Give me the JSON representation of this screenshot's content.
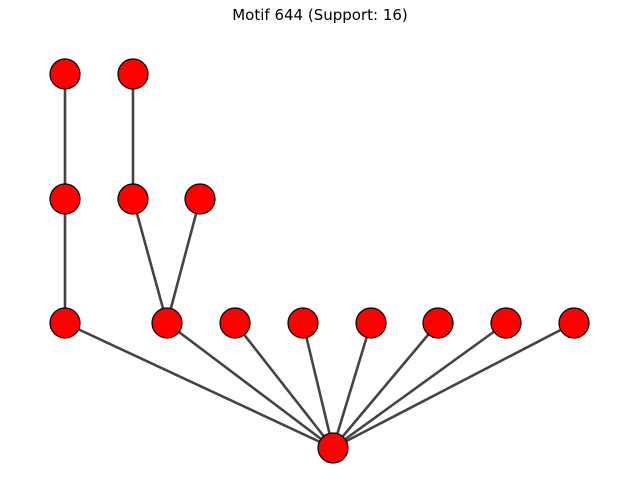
{
  "figure": {
    "title": "Motif 644 (Support: 16)"
  },
  "graph": {
    "node_color": "#ff0000",
    "node_border_color": "#000000",
    "edge_color": "#444444",
    "nodes": [
      "n0",
      "n1",
      "n2",
      "n3",
      "n4",
      "n5",
      "n6",
      "n7",
      "n8",
      "n9",
      "n10",
      "n11",
      "n12",
      "n13"
    ],
    "edges": [
      [
        "n0",
        "n2"
      ],
      [
        "n1",
        "n3"
      ],
      [
        "n2",
        "n5"
      ],
      [
        "n3",
        "n6"
      ],
      [
        "n4",
        "n6"
      ],
      [
        "n5",
        "n13"
      ],
      [
        "n6",
        "n13"
      ],
      [
        "n7",
        "n13"
      ],
      [
        "n8",
        "n13"
      ],
      [
        "n9",
        "n13"
      ],
      [
        "n10",
        "n13"
      ],
      [
        "n11",
        "n13"
      ],
      [
        "n12",
        "n13"
      ]
    ]
  }
}
